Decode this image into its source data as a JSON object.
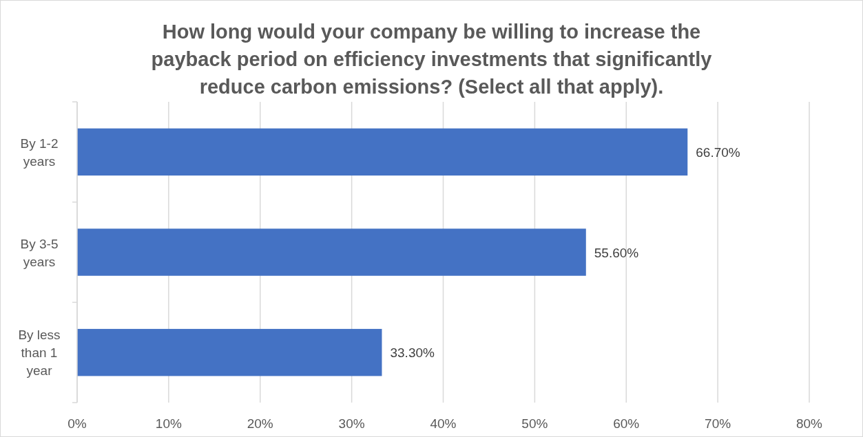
{
  "chart_data": {
    "type": "bar",
    "orientation": "horizontal",
    "title": "How long would your company be willing to increase the payback period on efficiency investments that significantly reduce carbon emissions? (Select all that apply).",
    "categories": [
      "By 1-2 years",
      "By 3-5 years",
      "By less than 1 year"
    ],
    "values": [
      66.7,
      55.6,
      33.3
    ],
    "value_labels": [
      "66.70%",
      "55.60%",
      "33.30%"
    ],
    "color": "#4472c4",
    "xlim": [
      0,
      80
    ],
    "xticks": [
      {
        "value": 0,
        "label": "0%"
      },
      {
        "value": 10,
        "label": "10%"
      },
      {
        "value": 20,
        "label": "20%"
      },
      {
        "value": 30,
        "label": "30%"
      },
      {
        "value": 40,
        "label": "40%"
      },
      {
        "value": 50,
        "label": "50%"
      },
      {
        "value": 60,
        "label": "60%"
      },
      {
        "value": 70,
        "label": "70%"
      },
      {
        "value": 80,
        "label": "80%"
      }
    ],
    "grid": "x"
  }
}
